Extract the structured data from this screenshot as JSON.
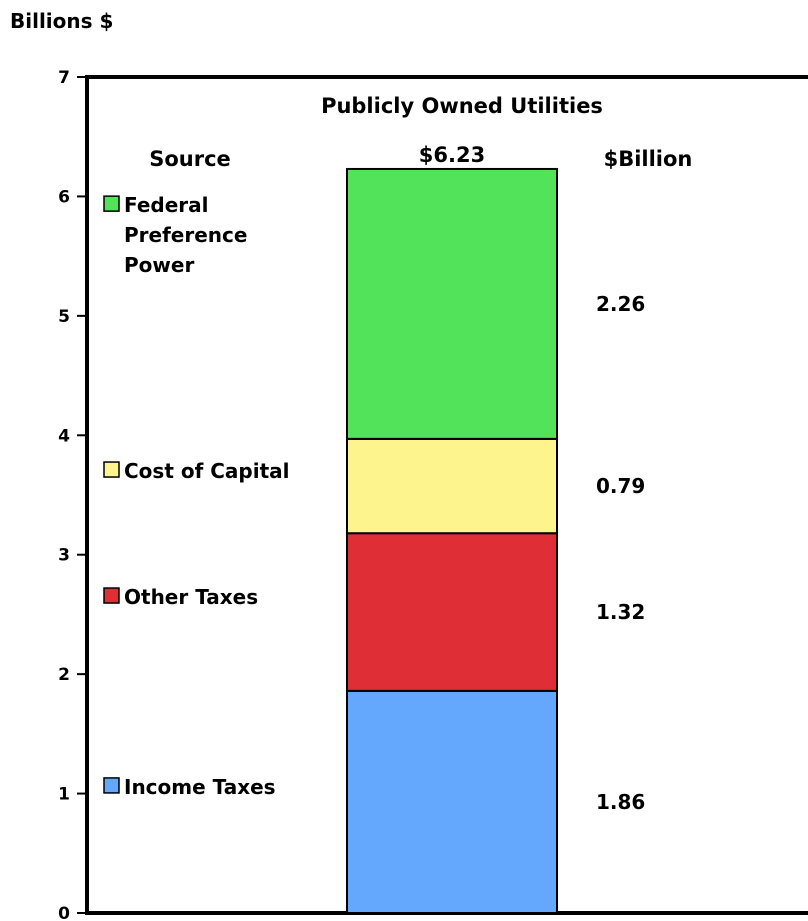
{
  "chart_data": {
    "type": "bar",
    "stacked": true,
    "ylabel": "Billions $",
    "ylim": [
      0,
      7
    ],
    "yticks": [
      "0",
      "1",
      "2",
      "3",
      "4",
      "5",
      "6",
      "7"
    ],
    "panel_title": "Publicly Owned Utilities",
    "column_headers": {
      "source": "Source",
      "billion": "$Billion"
    },
    "total_label": "$6.23",
    "total": 6.23,
    "legend_placement": "left",
    "grid": false,
    "series": [
      {
        "name": "Income Taxes",
        "value": 1.86,
        "label": "1.86",
        "color": "#63A8FC"
      },
      {
        "name": "Other Taxes",
        "value": 1.32,
        "label": "1.32",
        "color": "#DF2E36"
      },
      {
        "name": "Cost of Capital",
        "value": 0.79,
        "label": "0.79",
        "color": "#FDF48E"
      },
      {
        "name": "Federal Preference Power",
        "name_lines": [
          "Federal",
          "Preference",
          "Power"
        ],
        "value": 2.26,
        "label": "2.26",
        "color": "#52E35B"
      }
    ]
  }
}
